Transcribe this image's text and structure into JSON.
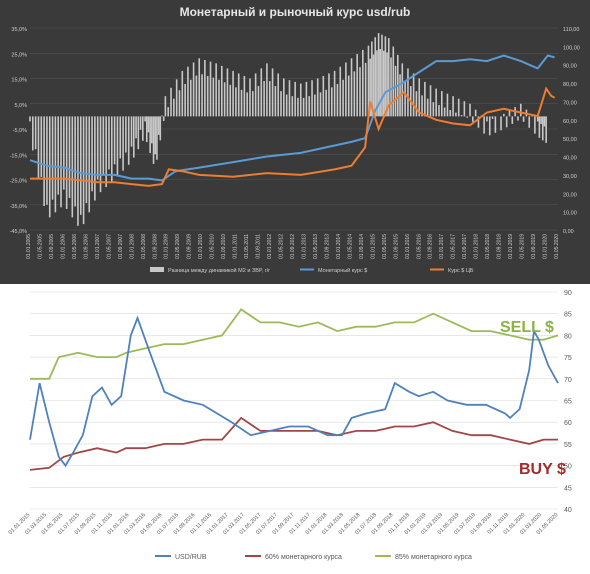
{
  "chart_data": [
    {
      "type": "bar+line",
      "title": "Монетарный  и рыночный  курс usd/rub",
      "y_left": {
        "ticks": [
          "35,0%",
          "25,0%",
          "15,0%",
          "5,0%",
          "-5,0%",
          "-15,0%",
          "-25,0%",
          "-35,0%",
          "-45,0%"
        ],
        "range": [
          -45,
          35
        ]
      },
      "y_right": {
        "ticks": [
          "110,00",
          "100,00",
          "90,00",
          "80,00",
          "70,00",
          "60,00",
          "50,00",
          "40,00",
          "30,00",
          "20,00",
          "10,00",
          "0,00"
        ],
        "range": [
          0,
          110
        ]
      },
      "x_ticks": [
        "01.01.2005",
        "01.05.2005",
        "01.09.2005",
        "01.01.2006",
        "01.05.2006",
        "01.09.2006",
        "01.01.2007",
        "01.05.2007",
        "01.09.2007",
        "01.01.2008",
        "01.05.2008",
        "01.09.2008",
        "01.01.2009",
        "01.05.2009",
        "01.09.2009",
        "01.01.2010",
        "01.05.2010",
        "01.09.2010",
        "01.01.2011",
        "01.05.2011",
        "01.09.2011",
        "01.01.2012",
        "01.05.2012",
        "01.09.2012",
        "01.01.2013",
        "01.05.2013",
        "01.09.2013",
        "01.01.2014",
        "01.05.2014",
        "01.09.2014",
        "01.01.2015",
        "01.05.2015",
        "01.09.2015",
        "01.01.2016",
        "01.05.2016",
        "01.09.2016",
        "01.01.2017",
        "01.05.2017",
        "01.09.2017",
        "01.01.2018",
        "01.05.2018",
        "01.09.2018",
        "01.01.2019",
        "01.05.2019",
        "01.09.2019",
        "01.01.2020",
        "01.05.2020"
      ],
      "legend": [
        "Разница между динамикой М2 и ЗВР, г/г",
        "Монетарный курс $",
        "Курс $ ЦБ"
      ],
      "colors": {
        "bars": "#c8c8c8",
        "monetary": "#5b9bd5",
        "cbr": "#ed7d31",
        "grid": "#555555",
        "text": "#d0d0d0"
      },
      "series": [
        {
          "name": "Разница между динамикой М2 и ЗВР, г/г",
          "axis": "left",
          "type": "bar",
          "x": [
            2005.0,
            2005.5,
            2006.0,
            2006.5,
            2007.0,
            2007.5,
            2008.0,
            2008.4,
            2008.7,
            2009.0,
            2009.5,
            2010.0,
            2010.5,
            2011.0,
            2011.5,
            2012.0,
            2012.5,
            2013.0,
            2013.5,
            2014.0,
            2014.5,
            2015.0,
            2015.3,
            2015.6,
            2016.0,
            2016.5,
            2017.0,
            2017.5,
            2018.0,
            2018.5,
            2019.0,
            2019.5,
            2020.0,
            2020.3
          ],
          "values": [
            -5,
            -38,
            -32,
            -42,
            -28,
            -22,
            -15,
            -5,
            -18,
            5,
            15,
            20,
            18,
            15,
            12,
            18,
            12,
            10,
            12,
            15,
            20,
            25,
            30,
            28,
            18,
            12,
            8,
            5,
            2,
            -5,
            -2,
            2,
            -5,
            -8
          ]
        },
        {
          "name": "Монетарный курс $",
          "axis": "right",
          "type": "line",
          "x": [
            2005.0,
            2005.5,
            2006.0,
            2006.5,
            2007.0,
            2007.5,
            2008.0,
            2008.5,
            2008.9,
            2009.3,
            2010.0,
            2011.0,
            2012.0,
            2013.0,
            2014.0,
            2014.5,
            2014.9,
            2015.2,
            2015.5,
            2016.0,
            2016.5,
            2017.0,
            2017.5,
            2018.0,
            2018.5,
            2019.0,
            2019.5,
            2020.0,
            2020.3,
            2020.5
          ],
          "values": [
            38,
            35,
            34,
            31,
            30,
            30,
            28,
            28,
            27,
            32,
            34,
            37,
            40,
            42,
            46,
            48,
            50,
            65,
            75,
            80,
            86,
            92,
            92,
            93,
            92,
            95,
            92,
            88,
            95,
            94
          ]
        },
        {
          "name": "Курс $ ЦБ",
          "axis": "right",
          "type": "line",
          "x": [
            2005.0,
            2005.5,
            2006.0,
            2006.5,
            2007.0,
            2007.5,
            2008.0,
            2008.5,
            2008.9,
            2009.1,
            2009.5,
            2010.0,
            2011.0,
            2012.0,
            2013.0,
            2014.0,
            2014.5,
            2014.9,
            2015.05,
            2015.3,
            2015.6,
            2016.05,
            2016.5,
            2017.0,
            2017.5,
            2018.0,
            2018.5,
            2019.0,
            2019.5,
            2020.0,
            2020.25,
            2020.4,
            2020.5
          ],
          "values": [
            28,
            28,
            28,
            27,
            26,
            26,
            25,
            24,
            25,
            33,
            32,
            30,
            29,
            31,
            30,
            33,
            35,
            45,
            70,
            55,
            68,
            75,
            64,
            60,
            58,
            57,
            64,
            66,
            64,
            62,
            77,
            73,
            72
          ]
        }
      ]
    },
    {
      "type": "line",
      "y_right": {
        "ticks": [
          "90",
          "85",
          "80",
          "75",
          "70",
          "65",
          "60",
          "55",
          "50",
          "45",
          "40"
        ],
        "range": [
          40,
          90
        ]
      },
      "x_ticks": [
        "01.01.2015",
        "01.03.2015",
        "01.05.2015",
        "01.07.2015",
        "01.09.2015",
        "01.11.2015",
        "01.01.2016",
        "01.03.2016",
        "01.05.2016",
        "01.07.2016",
        "01.09.2016",
        "01.11.2016",
        "01.01.2017",
        "01.03.2017",
        "01.05.2017",
        "01.07.2017",
        "01.09.2017",
        "01.11.2017",
        "01.01.2018",
        "01.03.2018",
        "01.05.2018",
        "01.07.2018",
        "01.09.2018",
        "01.11.2018",
        "01.01.2019",
        "01.03.2019",
        "01.05.2019",
        "01.07.2019",
        "01.09.2019",
        "01.11.2019",
        "01.01.2020",
        "01.03.2020",
        "01.05.2020"
      ],
      "legend": [
        "USD/RUB",
        "60% монетарного курса",
        "85% монетарного курса"
      ],
      "annotations": [
        {
          "text": "SELL $",
          "color": "#8ab33f"
        },
        {
          "text": "BUY $",
          "color": "#a52a2a"
        }
      ],
      "colors": {
        "usd": "#4f81bd",
        "p60": "#a14646",
        "p85": "#9bbb59",
        "grid": "#d9d9d9",
        "text": "#595959"
      },
      "series": [
        {
          "name": "USD/RUB",
          "x": [
            2015.0,
            2015.1,
            2015.2,
            2015.3,
            2015.37,
            2015.45,
            2015.55,
            2015.65,
            2015.75,
            2015.85,
            2015.95,
            2016.0,
            2016.05,
            2016.12,
            2016.25,
            2016.4,
            2016.6,
            2016.8,
            2016.95,
            2017.1,
            2017.3,
            2017.5,
            2017.7,
            2017.9,
            2018.1,
            2018.25,
            2018.35,
            2018.5,
            2018.7,
            2018.8,
            2018.95,
            2019.05,
            2019.2,
            2019.35,
            2019.55,
            2019.75,
            2019.95,
            2020.0,
            2020.1,
            2020.2,
            2020.25,
            2020.3,
            2020.4,
            2020.5
          ],
          "values": [
            56,
            69,
            60,
            52,
            50,
            53,
            57,
            66,
            68,
            64,
            66,
            73,
            80,
            84,
            76,
            67,
            65,
            64,
            62,
            60,
            57,
            58,
            59,
            59,
            57,
            57,
            61,
            62,
            63,
            69,
            67,
            66,
            67,
            65,
            64,
            64,
            62,
            61,
            63,
            72,
            81,
            79,
            73,
            69
          ]
        },
        {
          "name": "60% монетарного курса",
          "x": [
            2015.0,
            2015.2,
            2015.35,
            2015.5,
            2015.7,
            2015.9,
            2016.0,
            2016.2,
            2016.4,
            2016.6,
            2016.8,
            2017.0,
            2017.2,
            2017.4,
            2017.6,
            2017.8,
            2018.0,
            2018.2,
            2018.4,
            2018.6,
            2018.8,
            2019.0,
            2019.2,
            2019.4,
            2019.6,
            2019.8,
            2020.0,
            2020.2,
            2020.35,
            2020.5
          ],
          "values": [
            49,
            49.5,
            52,
            53,
            54,
            53,
            54,
            54,
            55,
            55,
            56,
            56,
            61,
            58,
            58,
            58,
            58,
            57,
            58,
            58,
            59,
            59,
            60,
            58,
            57,
            57,
            56,
            55,
            56,
            56
          ]
        },
        {
          "name": "85% монетарного курса",
          "x": [
            2015.0,
            2015.2,
            2015.3,
            2015.5,
            2015.7,
            2015.9,
            2016.0,
            2016.2,
            2016.4,
            2016.6,
            2016.8,
            2017.0,
            2017.2,
            2017.4,
            2017.6,
            2017.8,
            2018.0,
            2018.2,
            2018.4,
            2018.6,
            2018.8,
            2019.0,
            2019.2,
            2019.4,
            2019.6,
            2019.8,
            2020.0,
            2020.2,
            2020.35,
            2020.5
          ],
          "values": [
            70,
            70,
            75,
            76,
            75,
            75,
            76,
            77,
            78,
            78,
            79,
            80,
            86,
            83,
            83,
            82,
            83,
            81,
            82,
            82,
            83,
            83,
            85,
            83,
            81,
            81,
            80,
            79,
            79,
            80
          ]
        }
      ]
    }
  ]
}
